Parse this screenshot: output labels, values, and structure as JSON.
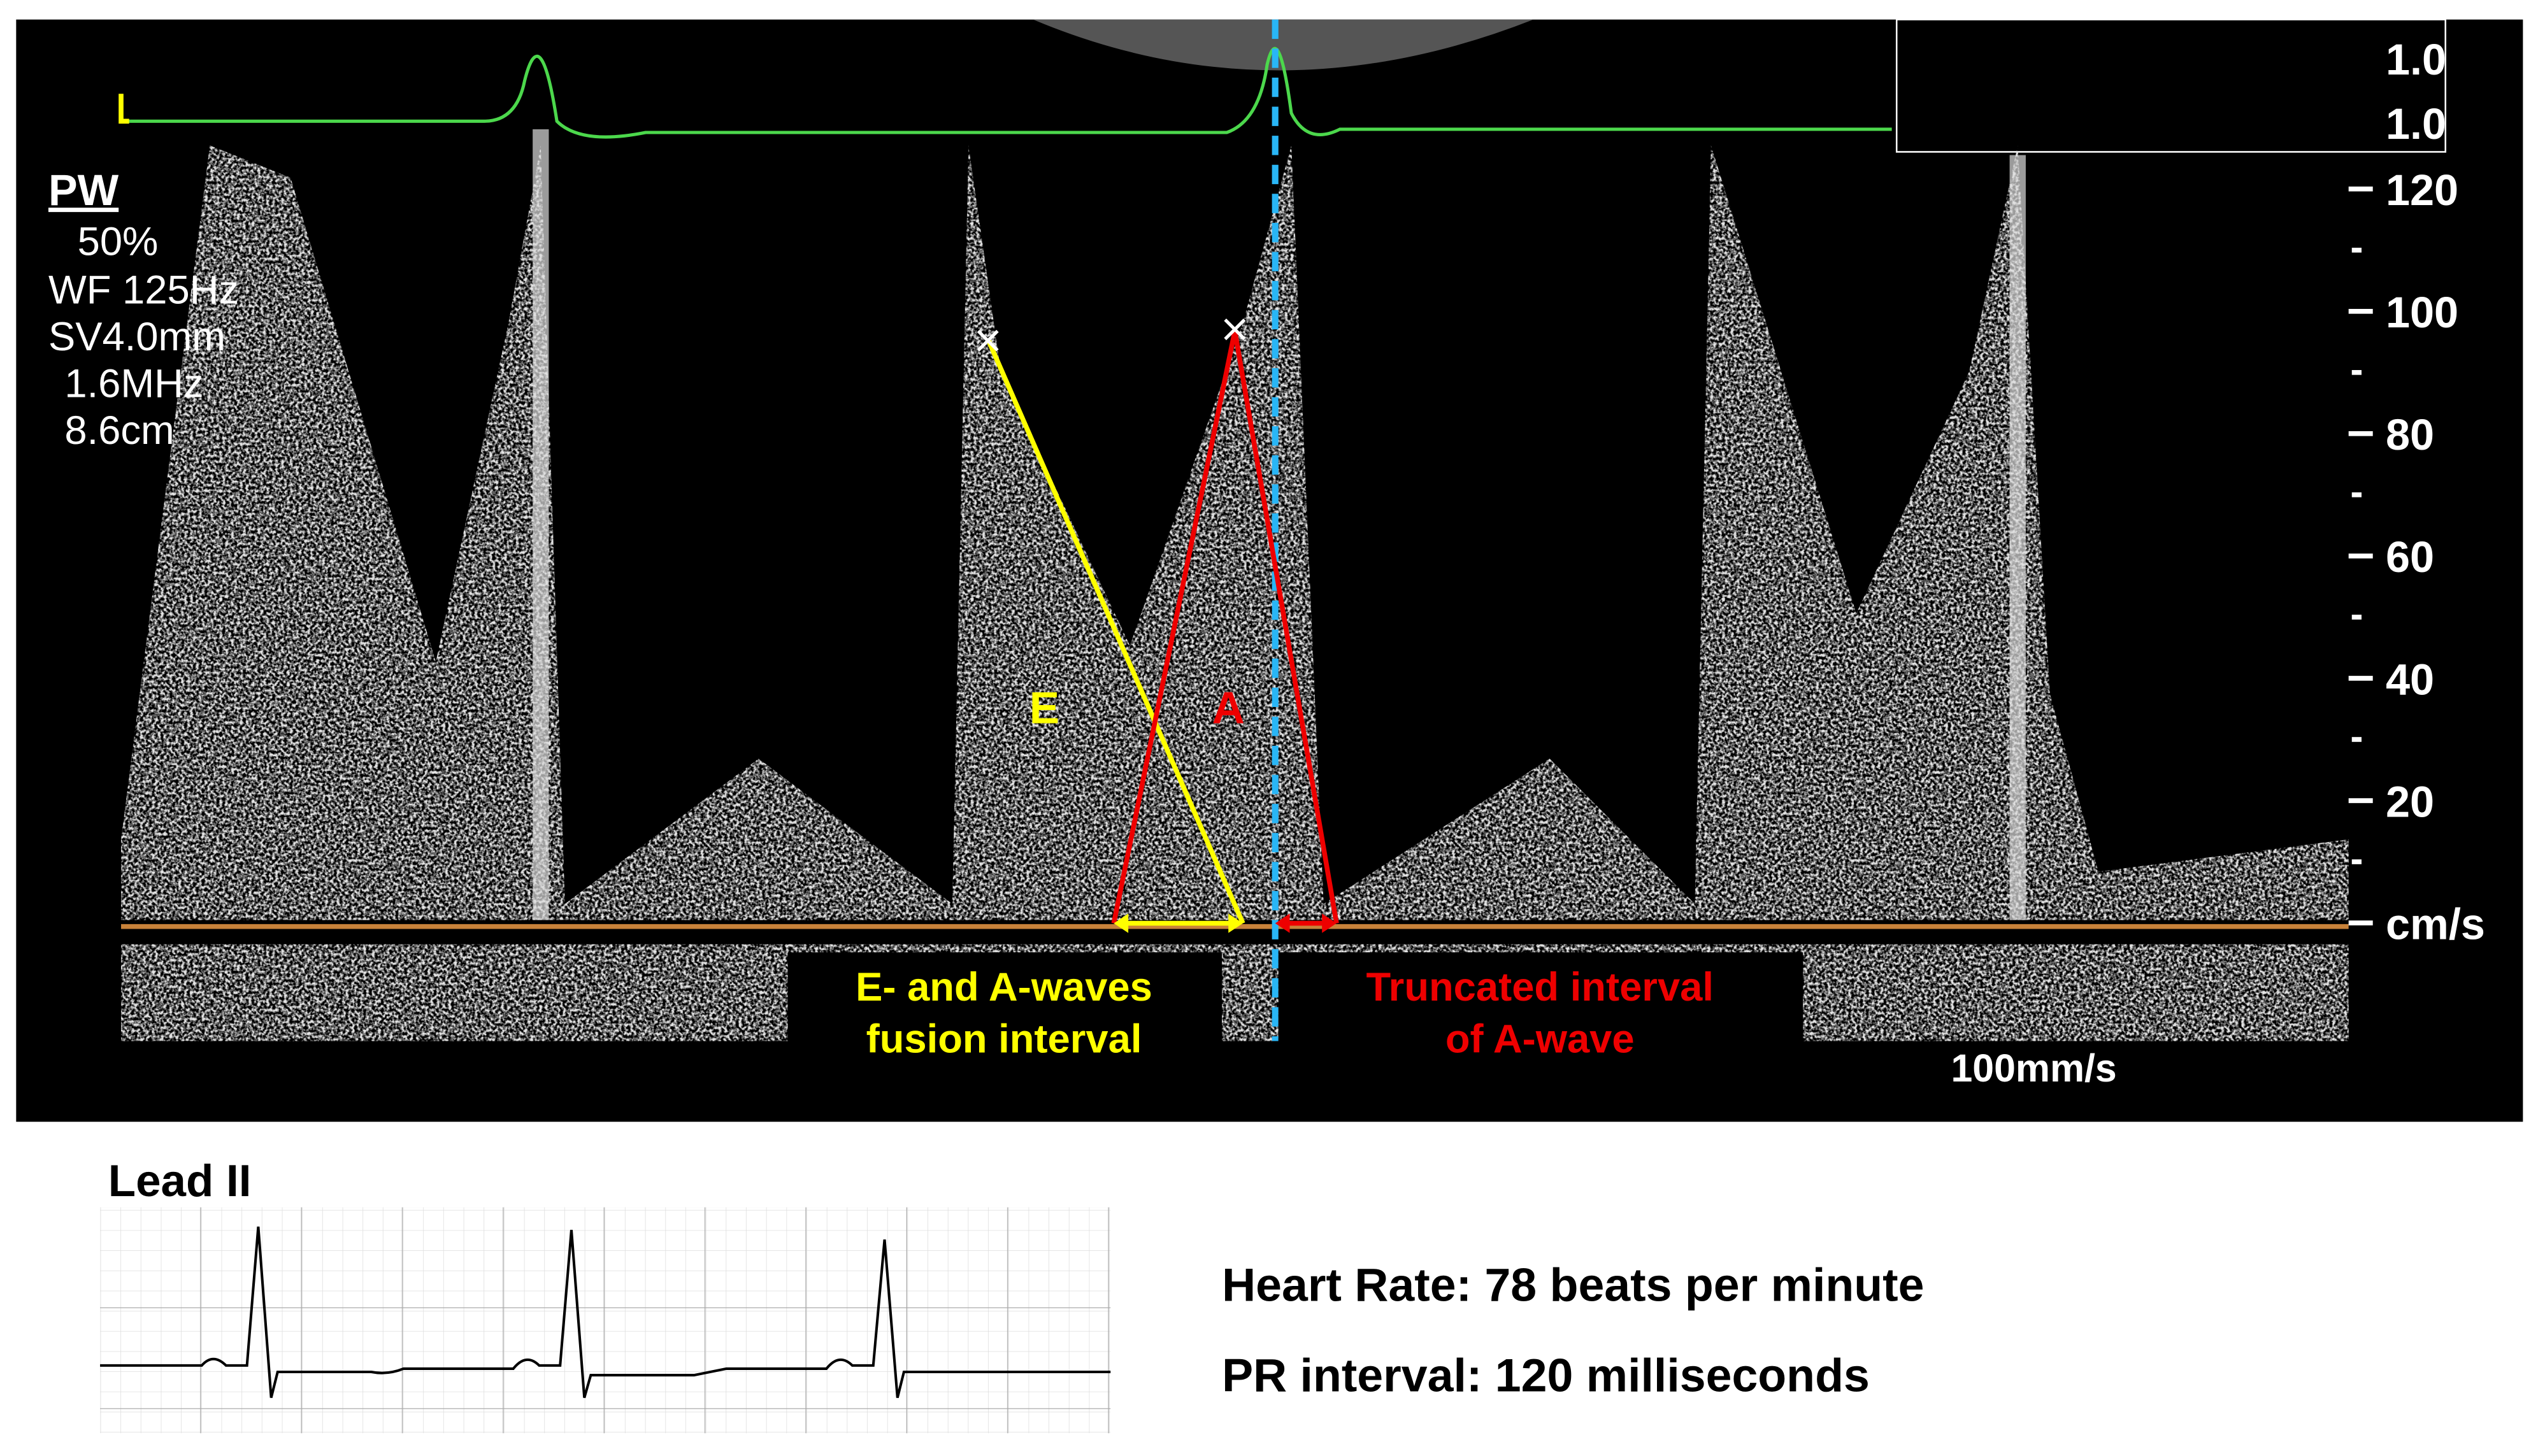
{
  "doppler": {
    "settings": [
      "PW",
      "50%",
      "WF 125Hz",
      "SV4.0mm",
      "1.6MHz",
      "8.6cm"
    ],
    "gain_labels": [
      "1.0",
      "1.0"
    ],
    "scale_labels": [
      "120",
      "100",
      "80",
      "60",
      "40",
      "20"
    ],
    "scale_unit": "cm/s",
    "e_label": "E",
    "a_label": "A",
    "fusion_box": [
      "E- and A-waves",
      "fusion interval"
    ],
    "truncated_box": [
      "Truncated interval",
      "of A-wave"
    ],
    "sweep_speed": "100mm/s"
  },
  "ecg": {
    "lead": "Lead II",
    "heart_rate": "Heart Rate: 78 beats per minute",
    "pr_interval": "PR interval: 120 milliseconds"
  }
}
